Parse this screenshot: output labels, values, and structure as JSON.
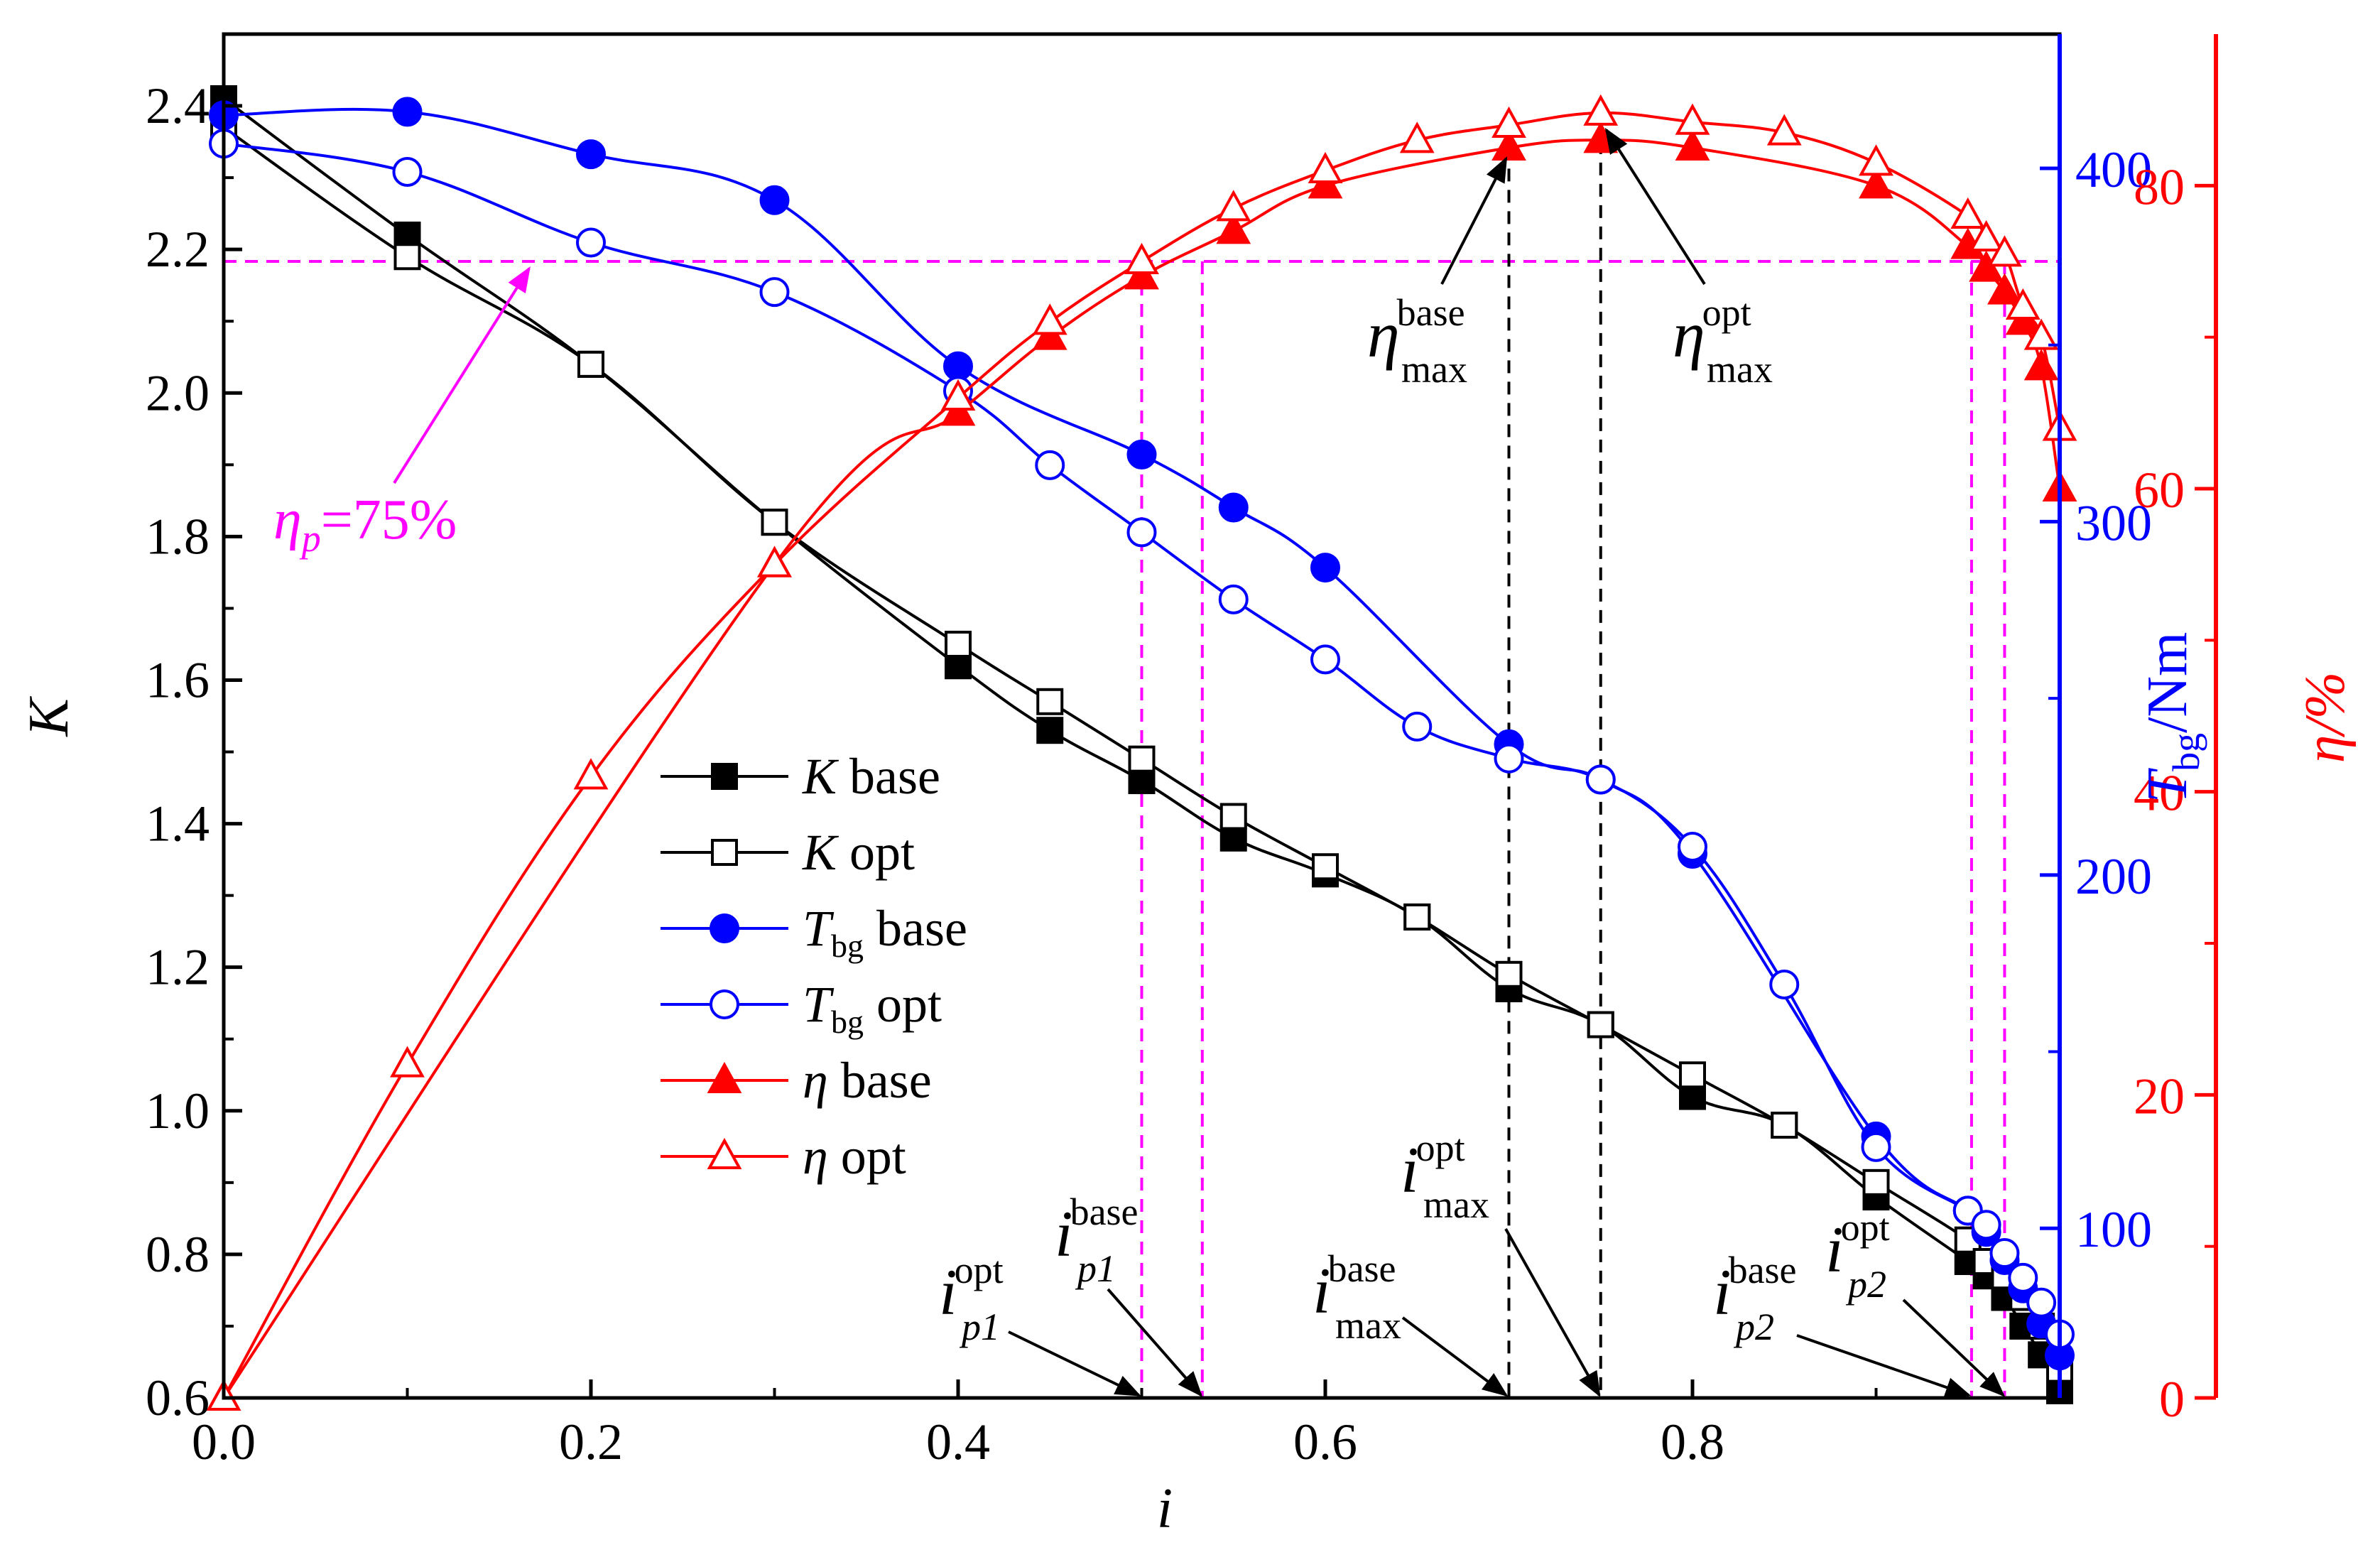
{
  "chart_data": {
    "type": "line",
    "xlabel": "i",
    "xlim": [
      0,
      1
    ],
    "x_ticks": [
      "0.0",
      "0.2",
      "0.4",
      "0.6",
      "0.8"
    ],
    "axes": {
      "K": {
        "label": "K",
        "ylim": [
          0.6,
          2.5
        ],
        "ticks": [
          "0.6",
          "0.8",
          "1.0",
          "1.2",
          "1.4",
          "1.6",
          "1.8",
          "2.0",
          "2.2",
          "2.4"
        ]
      },
      "T": {
        "label_main": "T",
        "label_sub": "bg",
        "label_rest": "/Nm",
        "ylim": [
          52,
          438
        ],
        "ticks": [
          "100",
          "200",
          "300",
          "400"
        ]
      },
      "eta": {
        "label": "η/%",
        "ylim": [
          0,
          90
        ],
        "ticks": [
          "0",
          "20",
          "40",
          "60",
          "80"
        ]
      }
    },
    "series": [
      {
        "name": "K base",
        "axis": "K",
        "marker": "square-filled",
        "x": [
          0,
          0.1,
          0.2,
          0.3,
          0.4,
          0.45,
          0.5,
          0.55,
          0.6,
          0.65,
          0.7,
          0.75,
          0.8,
          0.85,
          0.9,
          0.95,
          0.96,
          0.97,
          0.98,
          0.99,
          1.0
        ],
        "y": [
          2.41,
          2.22,
          2.04,
          1.82,
          1.62,
          1.53,
          1.46,
          1.38,
          1.33,
          1.27,
          1.17,
          1.12,
          1.02,
          0.98,
          0.88,
          0.79,
          0.77,
          0.74,
          0.7,
          0.66,
          0.61
        ]
      },
      {
        "name": "K opt",
        "axis": "K",
        "marker": "square-open",
        "x": [
          0,
          0.1,
          0.2,
          0.3,
          0.4,
          0.45,
          0.5,
          0.55,
          0.6,
          0.65,
          0.7,
          0.75,
          0.8,
          0.85,
          0.9,
          0.95,
          0.96,
          0.97,
          0.98,
          0.99,
          1.0
        ],
        "y": [
          2.37,
          2.19,
          2.04,
          1.82,
          1.65,
          1.57,
          1.49,
          1.41,
          1.34,
          1.27,
          1.19,
          1.12,
          1.05,
          0.98,
          0.9,
          0.82,
          0.79,
          0.77,
          0.74,
          0.7,
          0.64
        ]
      },
      {
        "name": "T base",
        "axis": "T",
        "marker": "circle-filled",
        "x": [
          0,
          0.1,
          0.2,
          0.3,
          0.4,
          0.5,
          0.55,
          0.6,
          0.7,
          0.75,
          0.8,
          0.9,
          0.95,
          0.96,
          0.97,
          0.98,
          0.99,
          1.0
        ],
        "y": [
          415,
          416,
          404,
          391,
          344,
          319,
          304,
          287,
          237,
          227,
          206,
          126,
          105,
          99,
          91,
          83,
          73,
          64
        ]
      },
      {
        "name": "T opt",
        "axis": "T",
        "marker": "circle-open",
        "x": [
          0,
          0.1,
          0.2,
          0.3,
          0.4,
          0.45,
          0.5,
          0.55,
          0.6,
          0.65,
          0.7,
          0.75,
          0.8,
          0.85,
          0.9,
          0.95,
          0.96,
          0.97,
          0.98,
          0.99,
          1.0
        ],
        "y": [
          407,
          399,
          379,
          365,
          337,
          316,
          297,
          278,
          261,
          242,
          233,
          227,
          208,
          169,
          123,
          105,
          101,
          93,
          86,
          79,
          70
        ]
      },
      {
        "name": "η base",
        "axis": "eta",
        "marker": "triangle-filled",
        "x": [
          0,
          0.3,
          0.4,
          0.45,
          0.5,
          0.55,
          0.6,
          0.7,
          0.75,
          0.8,
          0.9,
          0.95,
          0.96,
          0.97,
          0.98,
          0.99,
          1.0
        ],
        "y": [
          0,
          55,
          65,
          70,
          74,
          77,
          80,
          82.5,
          83,
          82.5,
          80,
          76,
          74.5,
          73,
          71,
          68,
          60
        ]
      },
      {
        "name": "η opt",
        "axis": "eta",
        "marker": "triangle-open",
        "x": [
          0,
          0.1,
          0.2,
          0.3,
          0.4,
          0.45,
          0.5,
          0.55,
          0.6,
          0.65,
          0.7,
          0.75,
          0.8,
          0.85,
          0.9,
          0.95,
          0.96,
          0.97,
          0.98,
          0.99,
          1.0
        ],
        "y": [
          0,
          22,
          41,
          55,
          66,
          71,
          75,
          78.5,
          81,
          83,
          84,
          84.8,
          84.2,
          83.5,
          81.5,
          78,
          76.5,
          75.5,
          72,
          70,
          64
        ]
      }
    ],
    "legend": {
      "position": "center-left",
      "entries": [
        {
          "main": "K",
          "sub": "",
          "rest": " base"
        },
        {
          "main": "K",
          "sub": "",
          "rest": " opt"
        },
        {
          "main": "T",
          "sub": "bg",
          "rest": " base"
        },
        {
          "main": "T",
          "sub": "bg",
          "rest": " opt"
        },
        {
          "main": "η",
          "sub": "",
          "rest": " base"
        },
        {
          "main": "η",
          "sub": "",
          "rest": " opt"
        }
      ]
    },
    "reference_lines": {
      "horizontal_eta_p": {
        "eta": 75,
        "label": "η",
        "label_sub": "p",
        "label_rest": "=75%"
      },
      "vertical_magenta_x": [
        0.5,
        0.533,
        0.952,
        0.97
      ],
      "vertical_black_x": [
        0.7,
        0.75
      ]
    },
    "annotations": [
      {
        "key": "eta_max_base",
        "text": "η",
        "sub": "max",
        "sup": "base"
      },
      {
        "key": "eta_max_opt",
        "text": "η",
        "sub": "max",
        "sup": "opt"
      },
      {
        "key": "i_p1_opt",
        "text": "i",
        "sub": "p1",
        "sup": "opt"
      },
      {
        "key": "i_p1_base",
        "text": "i",
        "sub": "p1",
        "sup": "base"
      },
      {
        "key": "i_max_base",
        "text": "i",
        "sub": "max",
        "sup": "base"
      },
      {
        "key": "i_max_opt",
        "text": "i",
        "sub": "max",
        "sup": "opt"
      },
      {
        "key": "i_p2_base",
        "text": "i",
        "sub": "p2",
        "sup": "base"
      },
      {
        "key": "i_p2_opt",
        "text": "i",
        "sub": "p2",
        "sup": "opt"
      }
    ],
    "colors": {
      "K": "#000000",
      "T": "#0000ff",
      "eta": "#ff0000",
      "ref": "#ff00ff"
    }
  }
}
